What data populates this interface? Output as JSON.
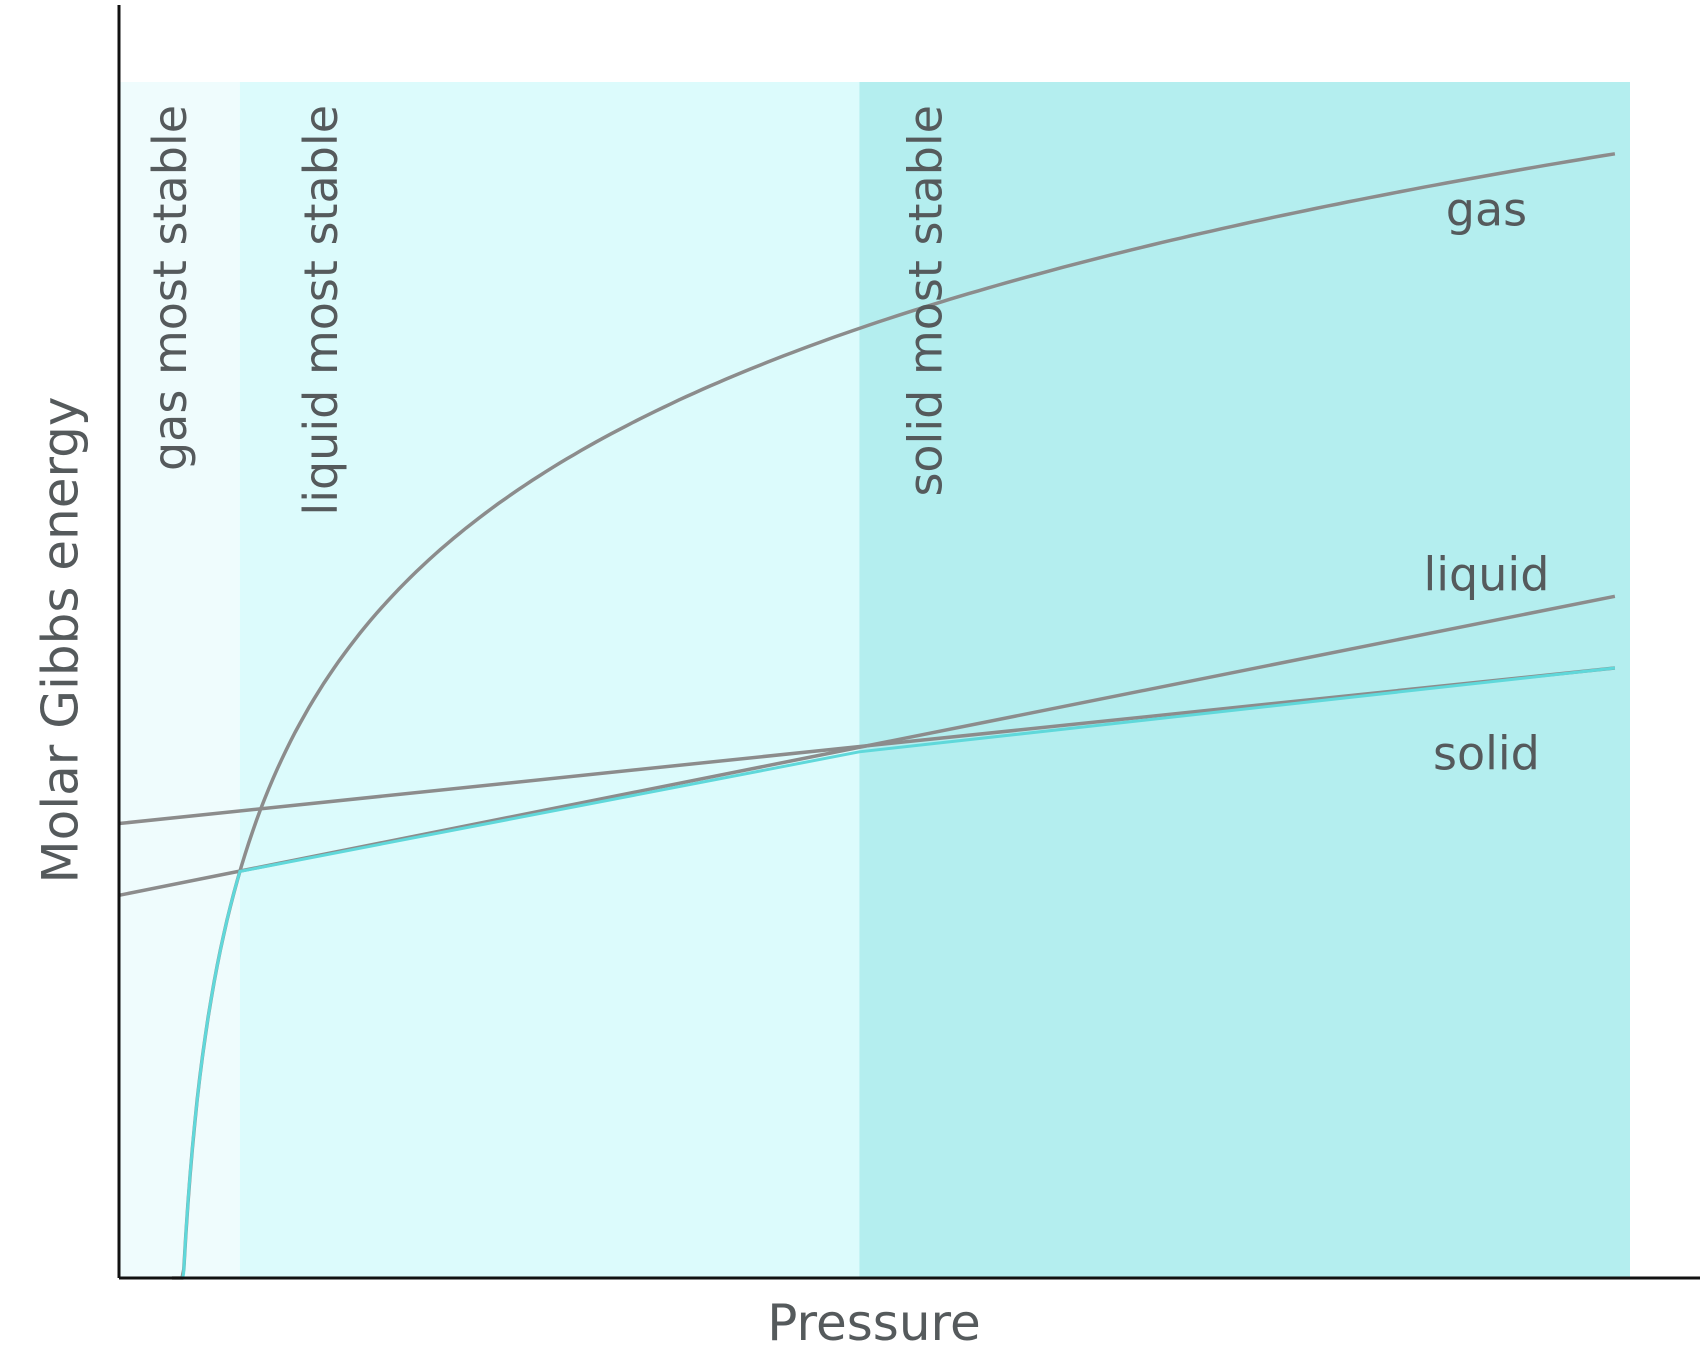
{
  "chart_data": {
    "type": "line",
    "title": "",
    "xlabel": "Pressure",
    "ylabel": "Molar Gibbs energy",
    "xlim": [
      0,
      1
    ],
    "ylim": [
      0,
      1
    ],
    "axis_ticks": false,
    "grid": false,
    "regions": [
      {
        "label": "gas most stable",
        "x_start": 0.0,
        "x_end": 0.08,
        "color": "#effcfd"
      },
      {
        "label": "liquid most stable",
        "x_start": 0.08,
        "x_end": 0.49,
        "color": "#dcfbfc"
      },
      {
        "label": "solid most stable",
        "x_start": 0.49,
        "x_end": 1.0,
        "color": "#b4eeef"
      }
    ],
    "series": [
      {
        "name": "gas",
        "shape": "logarithmic",
        "color": "#8c8c8c",
        "x_start": 0.035,
        "x_end": 0.99,
        "y_at_x_start": 0.0,
        "y_at_x_end": 0.94,
        "passes_through": [
          [
            0.08,
            0.34
          ],
          [
            0.49,
            0.82
          ]
        ]
      },
      {
        "name": "liquid",
        "shape": "linear",
        "color": "#8c8c8c",
        "x_start": 0.0,
        "x_end": 0.99,
        "y_at_x_start": 0.32,
        "y_at_x_end": 0.57
      },
      {
        "name": "solid",
        "shape": "linear",
        "color": "#8c8c8c",
        "x_start": 0.0,
        "x_end": 0.99,
        "y_at_x_start": 0.38,
        "y_at_x_end": 0.51
      }
    ],
    "stable_phase_envelope": {
      "color": "#5fd8da",
      "description_points": [
        [
          0.035,
          0.0
        ],
        [
          0.08,
          0.34
        ],
        [
          0.49,
          0.44
        ],
        [
          0.99,
          0.51
        ]
      ]
    }
  },
  "colors": {
    "axis": "#111111",
    "curve": "#8c8c8c",
    "envelope": "#5fd8da",
    "text": "#555a5c"
  }
}
